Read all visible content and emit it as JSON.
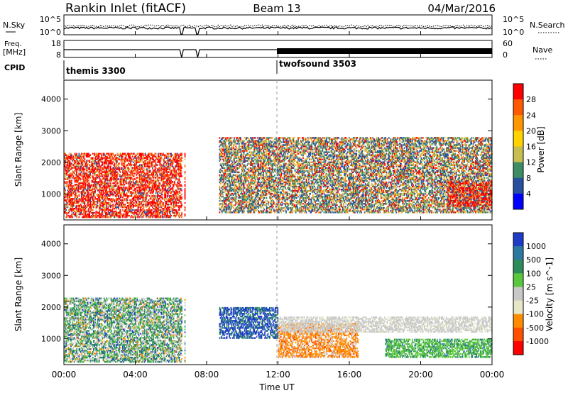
{
  "header": {
    "station": "Rankin Inlet (fitACF)",
    "beam": "Beam 13",
    "date": "04/Mar/2016"
  },
  "noise_panel": {
    "left_label": "N.Sky",
    "right_label": "N.Search",
    "left_ticks": [
      "10^5",
      "10^0"
    ],
    "right_ticks": [
      "10^5",
      "10^0"
    ]
  },
  "freq_panel": {
    "left_label_line1": "Freq.",
    "left_label_line2": "[MHz]",
    "right_label": "Nave",
    "left_ticks": [
      "18",
      "8"
    ],
    "right_ticks": [
      "60",
      "0"
    ]
  },
  "cpid": {
    "label": "CPID",
    "modes": [
      {
        "name": "themis 3300",
        "start_hour": 0
      },
      {
        "name": "twofsound 3503",
        "start_hour": 12
      }
    ]
  },
  "chart_data": [
    {
      "type": "heatmap",
      "title": "Power",
      "xlabel": "",
      "ylabel": "Slant Range [km]",
      "colorbar_label": "Power [dB]",
      "xlim": [
        0,
        24
      ],
      "ylim": [
        180,
        4600
      ],
      "x_tick_labels": [
        "00:00",
        "04:00",
        "08:00",
        "12:00",
        "16:00",
        "20:00",
        "00:00"
      ],
      "y_ticks": [
        1000,
        2000,
        3000,
        4000
      ],
      "colorbar_ticks": [
        "28",
        "24",
        "20",
        "16",
        "12",
        "8",
        "4"
      ],
      "colorbar_colors": [
        "#ff0000",
        "#ff5a00",
        "#ff9600",
        "#ffd200",
        "#c8be50",
        "#3c8c64",
        "#2850a0",
        "#0000ff"
      ],
      "echo_regions": [
        {
          "t0": 0.0,
          "t1": 6.8,
          "r0": 250,
          "r1": 2300,
          "level": "high"
        },
        {
          "t0": 8.7,
          "t1": 24.0,
          "r0": 400,
          "r1": 2800,
          "level": "medium"
        },
        {
          "t0": 21.5,
          "t1": 24.0,
          "r0": 600,
          "r1": 1400,
          "level": "high"
        }
      ]
    },
    {
      "type": "heatmap",
      "title": "Velocity",
      "xlabel": "Time UT",
      "ylabel": "Slant Range [km]",
      "colorbar_label": "Velocity [m s^-1]",
      "xlim": [
        0,
        24
      ],
      "ylim": [
        180,
        4600
      ],
      "x_tick_labels": [
        "00:00",
        "04:00",
        "08:00",
        "12:00",
        "16:00",
        "20:00",
        "00:00"
      ],
      "y_ticks": [
        1000,
        2000,
        3000,
        4000
      ],
      "colorbar_ticks": [
        "1000",
        "500",
        "100",
        "25",
        "-25",
        "-100",
        "-500",
        "-1000"
      ],
      "colorbar_colors": [
        "#1e3cc8",
        "#2d78a0",
        "#2d8c5a",
        "#5ac83c",
        "#c8c8c8",
        "#e6e6c8",
        "#ff8c00",
        "#ff5000",
        "#ff0000"
      ],
      "echo_regions": [
        {
          "t0": 0.0,
          "t1": 6.8,
          "r0": 250,
          "r1": 2300,
          "sign": "mixed"
        },
        {
          "t0": 8.7,
          "t1": 12.0,
          "r0": 1000,
          "r1": 2000,
          "sign": "positive"
        },
        {
          "t0": 12.0,
          "t1": 16.5,
          "r0": 400,
          "r1": 1500,
          "sign": "negative"
        },
        {
          "t0": 12.0,
          "t1": 24.0,
          "r0": 1200,
          "r1": 1700,
          "sign": "near-zero"
        },
        {
          "t0": 18.0,
          "t1": 24.0,
          "r0": 400,
          "r1": 1000,
          "sign": "positive"
        }
      ]
    }
  ]
}
